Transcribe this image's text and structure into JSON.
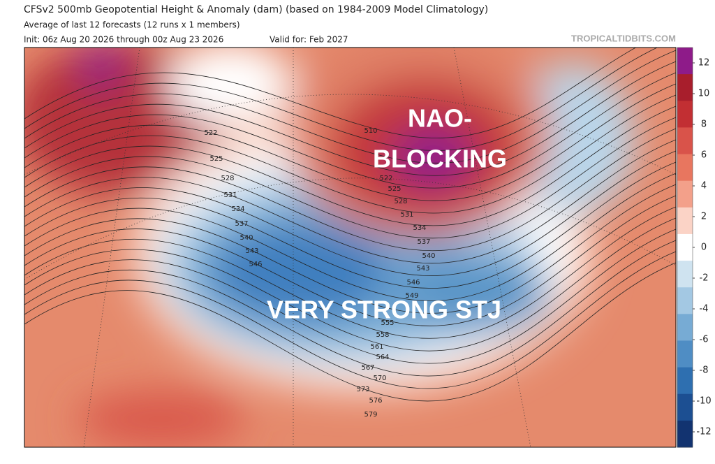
{
  "header": {
    "title": "CFSv2 500mb Geopotential Height & Anomaly (dam) (based on 1984-2009 Model Climatology)",
    "subtitle": "Average of last 12 forecasts (12 runs x 1 members)",
    "init": "Init: 06z Aug 20 2026 through 00z Aug 23 2026",
    "valid": "Valid for: Feb 2027",
    "watermark": "TROPICALTIDBITS.COM"
  },
  "annotations": {
    "nao": [
      "NAO-",
      "BLOCKING"
    ],
    "stj": "VERY STRONG STJ"
  },
  "contour_labels": [
    522,
    525,
    528,
    531,
    534,
    537,
    540,
    543,
    546,
    510,
    522,
    525,
    528,
    531,
    534,
    537,
    540,
    543,
    546,
    549,
    555,
    558,
    561,
    564,
    567,
    570,
    573,
    576,
    579
  ],
  "colorbar": {
    "lim": [
      -13,
      13
    ],
    "ticks": [
      12,
      10,
      8,
      6,
      4,
      2,
      0,
      -2,
      -4,
      -6,
      -8,
      -10,
      -12
    ],
    "colors": [
      "#8e1b89",
      "#a81e2c",
      "#c22f33",
      "#d9534a",
      "#e8765f",
      "#f3a08a",
      "#fbd3c6",
      "#ffffff",
      "#cfe3f0",
      "#a3c8e3",
      "#77abd4",
      "#4f8dc4",
      "#2e6fb0",
      "#1c4f92",
      "#123370"
    ]
  }
}
